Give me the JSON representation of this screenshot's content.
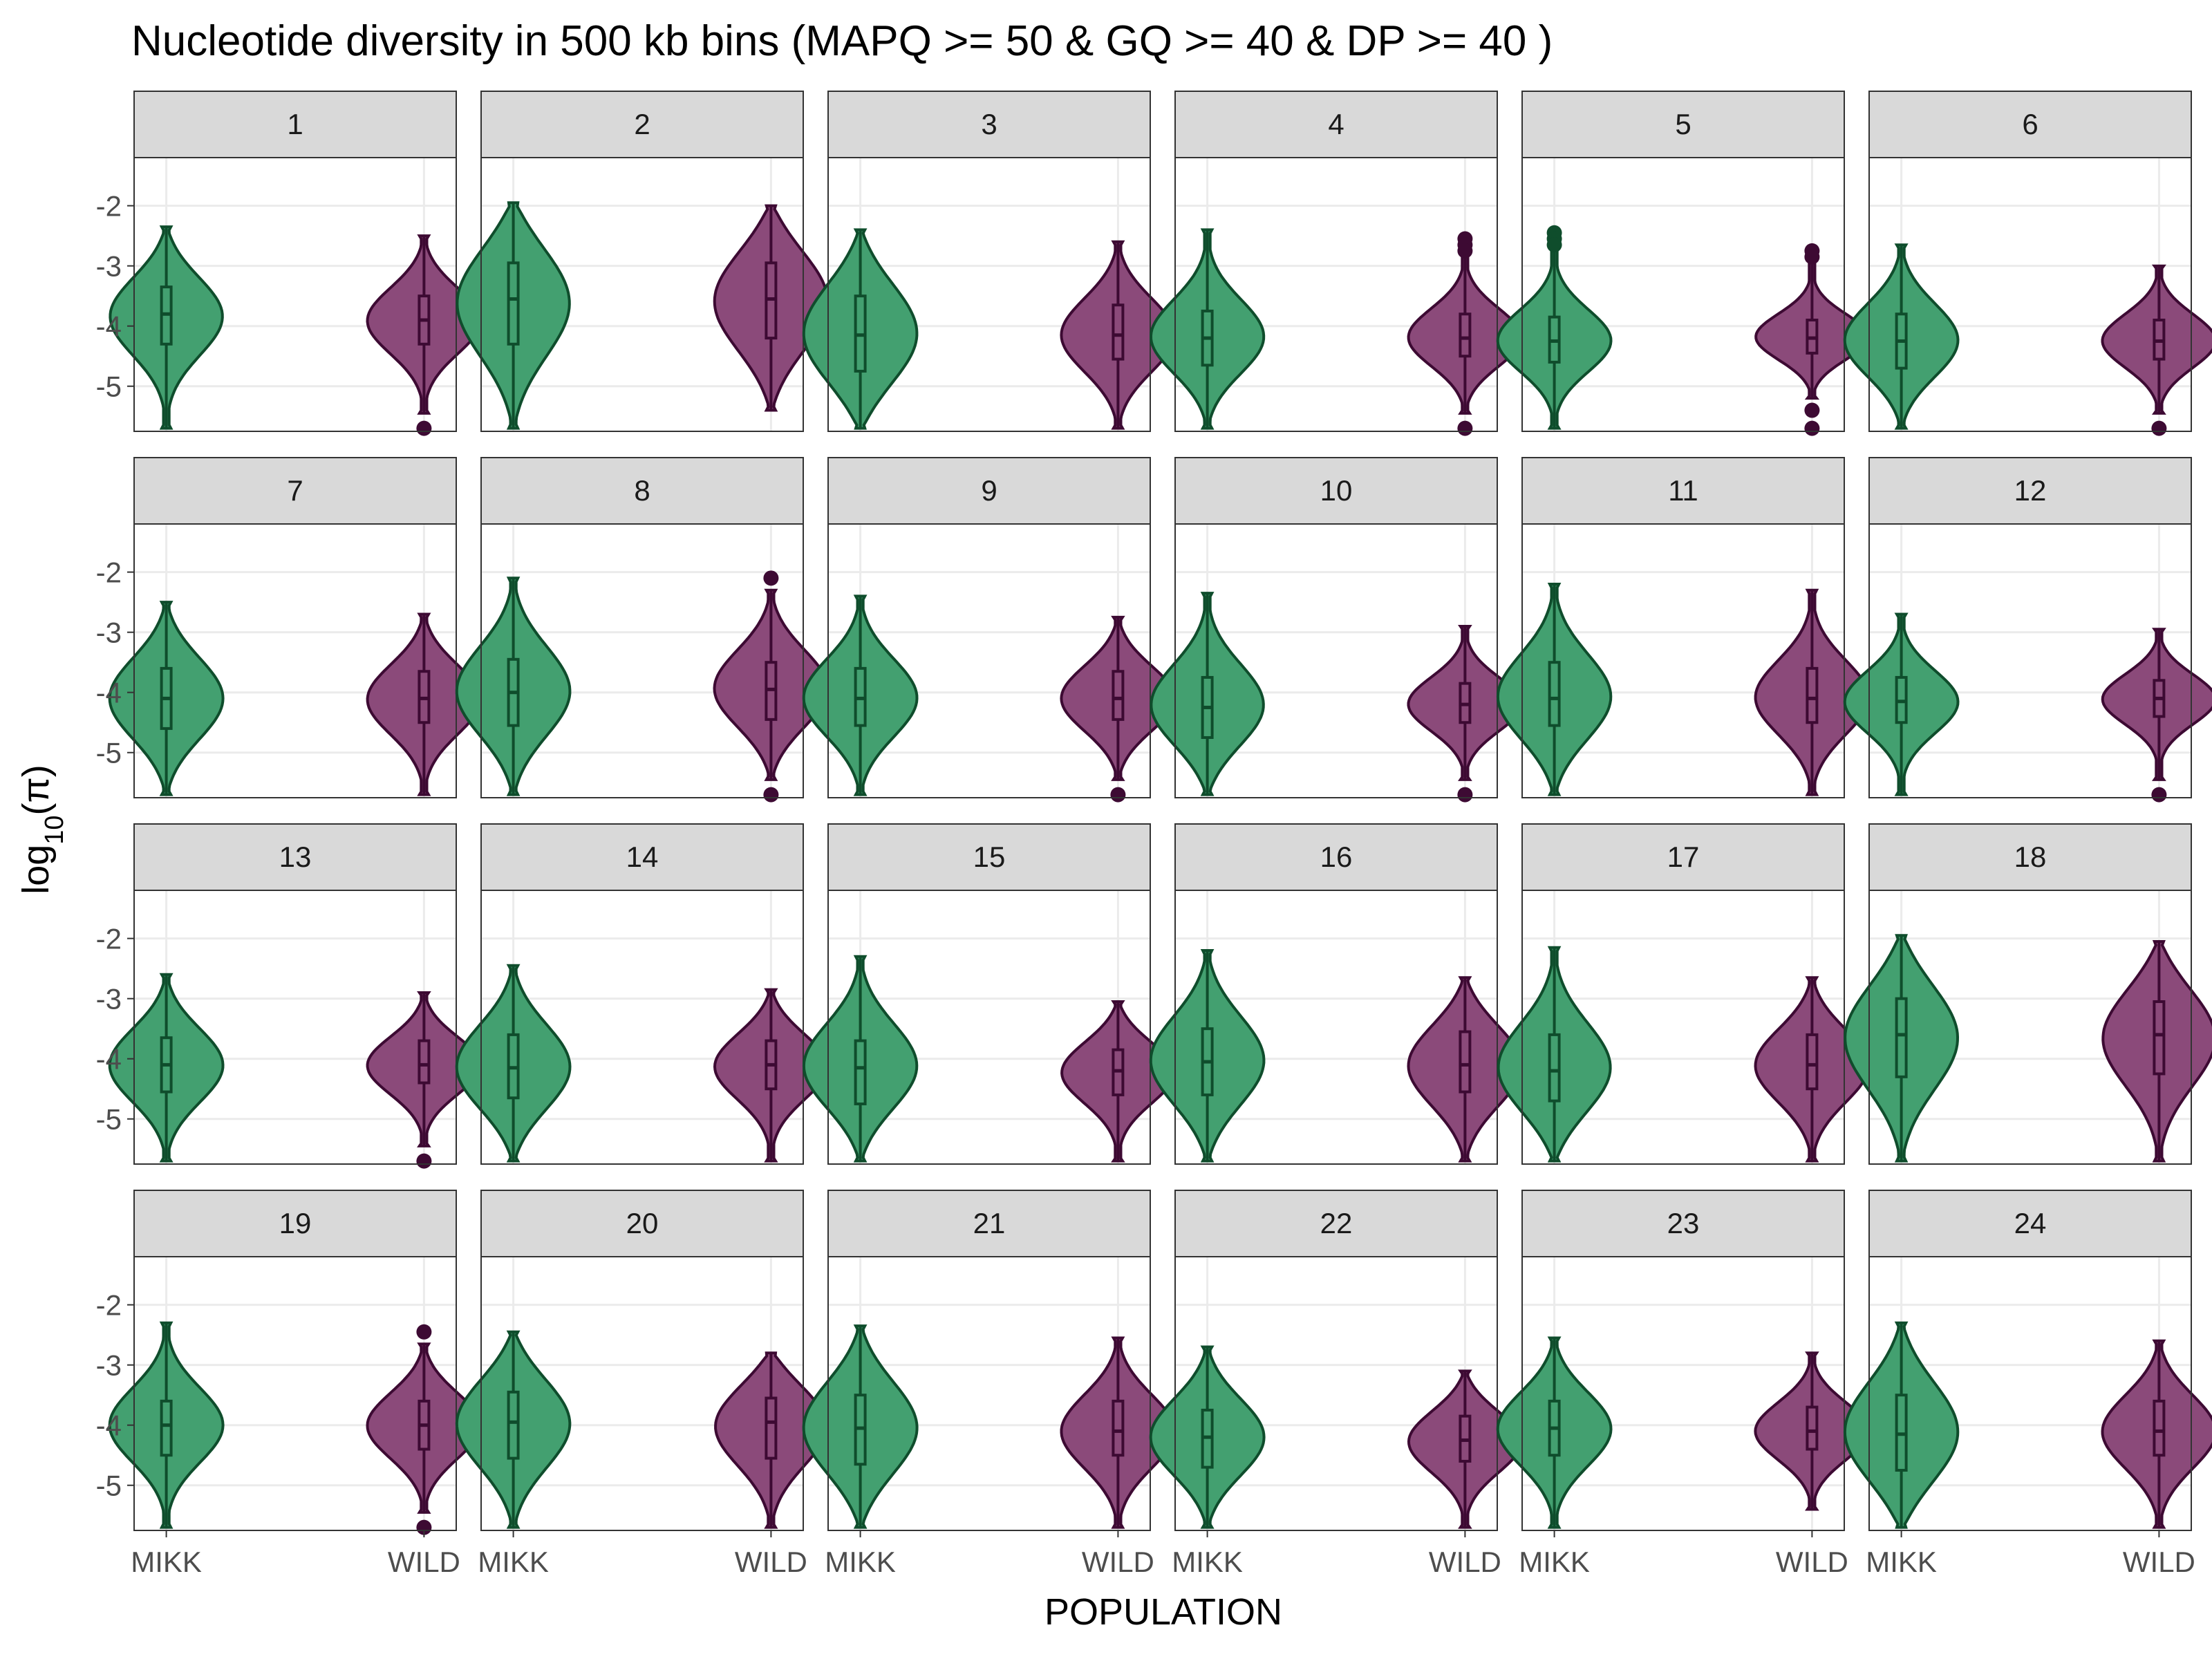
{
  "chart_data": {
    "type": "violin",
    "title": "Nucleotide diversity in 500 kb bins (MAPQ >= 50 & GQ >= 40 & DP >= 40 )",
    "xlabel": "POPULATION",
    "ylabel_main": "log",
    "ylabel_sub": "10",
    "ylabel_rest": "(π)",
    "categories": [
      "MIKK",
      "WILD"
    ],
    "yticks": [
      "-2",
      "-3",
      "-4",
      "-5"
    ],
    "ytick_values": [
      -2,
      -3,
      -4,
      -5
    ],
    "ylim": [
      -5.75,
      -1.2
    ],
    "grid": true,
    "facet_layout": {
      "rows": 4,
      "cols": 6
    },
    "colors": {
      "MIKK_fill": "#43a070",
      "MIKK_line": "#0f4d2c",
      "WILD_fill": "#8b4a7a",
      "WILD_line": "#3d0a33",
      "strip_bg": "#d9d9d9",
      "panel_border": "#333333",
      "grid": "#ebebeb"
    },
    "panels": [
      {
        "label": "1",
        "MIKK": {
          "min": -5.7,
          "q1": -4.3,
          "median": -3.8,
          "q3": -3.35,
          "max": -2.35,
          "outliers": []
        },
        "WILD": {
          "min": -5.45,
          "q1": -4.3,
          "median": -3.9,
          "q3": -3.5,
          "max": -2.5,
          "outliers": [
            -5.7
          ]
        }
      },
      {
        "label": "2",
        "MIKK": {
          "min": -5.7,
          "q1": -4.3,
          "median": -3.55,
          "q3": -2.95,
          "max": -1.95,
          "outliers": []
        },
        "WILD": {
          "min": -5.4,
          "q1": -4.2,
          "median": -3.55,
          "q3": -2.95,
          "max": -2.0,
          "outliers": []
        }
      },
      {
        "label": "3",
        "MIKK": {
          "min": -5.7,
          "q1": -4.75,
          "median": -4.15,
          "q3": -3.5,
          "max": -2.4,
          "outliers": []
        },
        "WILD": {
          "min": -5.7,
          "q1": -4.55,
          "median": -4.15,
          "q3": -3.65,
          "max": -2.6,
          "outliers": []
        }
      },
      {
        "label": "4",
        "MIKK": {
          "min": -5.7,
          "q1": -4.65,
          "median": -4.2,
          "q3": -3.75,
          "max": -2.4,
          "outliers": []
        },
        "WILD": {
          "min": -5.45,
          "q1": -4.5,
          "median": -4.2,
          "q3": -3.8,
          "max": -2.8,
          "outliers": [
            -2.55,
            -2.65,
            -2.75,
            -5.7
          ]
        }
      },
      {
        "label": "5",
        "MIKK": {
          "min": -5.7,
          "q1": -4.6,
          "median": -4.25,
          "q3": -3.85,
          "max": -2.7,
          "outliers": [
            -2.45,
            -2.55,
            -2.65
          ]
        },
        "WILD": {
          "min": -5.2,
          "q1": -4.45,
          "median": -4.2,
          "q3": -3.9,
          "max": -2.9,
          "outliers": [
            -2.75,
            -2.85,
            -5.4,
            -5.7
          ]
        }
      },
      {
        "label": "6",
        "MIKK": {
          "min": -5.7,
          "q1": -4.7,
          "median": -4.25,
          "q3": -3.8,
          "max": -2.65,
          "outliers": []
        },
        "WILD": {
          "min": -5.45,
          "q1": -4.55,
          "median": -4.25,
          "q3": -3.9,
          "max": -3.0,
          "outliers": [
            -5.7
          ]
        }
      },
      {
        "label": "7",
        "MIKK": {
          "min": -5.7,
          "q1": -4.6,
          "median": -4.1,
          "q3": -3.6,
          "max": -2.5,
          "outliers": []
        },
        "WILD": {
          "min": -5.7,
          "q1": -4.5,
          "median": -4.1,
          "q3": -3.65,
          "max": -2.7,
          "outliers": []
        }
      },
      {
        "label": "8",
        "MIKK": {
          "min": -5.7,
          "q1": -4.55,
          "median": -4.0,
          "q3": -3.45,
          "max": -2.1,
          "outliers": []
        },
        "WILD": {
          "min": -5.45,
          "q1": -4.45,
          "median": -3.95,
          "q3": -3.5,
          "max": -2.3,
          "outliers": [
            -2.1,
            -5.7
          ]
        }
      },
      {
        "label": "9",
        "MIKK": {
          "min": -5.7,
          "q1": -4.55,
          "median": -4.1,
          "q3": -3.6,
          "max": -2.4,
          "outliers": []
        },
        "WILD": {
          "min": -5.45,
          "q1": -4.45,
          "median": -4.1,
          "q3": -3.65,
          "max": -2.75,
          "outliers": [
            -5.7
          ]
        }
      },
      {
        "label": "10",
        "MIKK": {
          "min": -5.7,
          "q1": -4.75,
          "median": -4.25,
          "q3": -3.75,
          "max": -2.35,
          "outliers": []
        },
        "WILD": {
          "min": -5.45,
          "q1": -4.5,
          "median": -4.2,
          "q3": -3.85,
          "max": -2.9,
          "outliers": [
            -5.7
          ]
        }
      },
      {
        "label": "11",
        "MIKK": {
          "min": -5.7,
          "q1": -4.55,
          "median": -4.1,
          "q3": -3.5,
          "max": -2.2,
          "outliers": []
        },
        "WILD": {
          "min": -5.7,
          "q1": -4.5,
          "median": -4.1,
          "q3": -3.6,
          "max": -2.3,
          "outliers": []
        }
      },
      {
        "label": "12",
        "MIKK": {
          "min": -5.7,
          "q1": -4.5,
          "median": -4.15,
          "q3": -3.75,
          "max": -2.7,
          "outliers": []
        },
        "WILD": {
          "min": -5.45,
          "q1": -4.4,
          "median": -4.1,
          "q3": -3.8,
          "max": -2.95,
          "outliers": [
            -5.7
          ]
        }
      },
      {
        "label": "13",
        "MIKK": {
          "min": -5.7,
          "q1": -4.55,
          "median": -4.1,
          "q3": -3.65,
          "max": -2.6,
          "outliers": []
        },
        "WILD": {
          "min": -5.45,
          "q1": -4.4,
          "median": -4.1,
          "q3": -3.7,
          "max": -2.9,
          "outliers": [
            -5.7
          ]
        }
      },
      {
        "label": "14",
        "MIKK": {
          "min": -5.7,
          "q1": -4.65,
          "median": -4.15,
          "q3": -3.6,
          "max": -2.45,
          "outliers": []
        },
        "WILD": {
          "min": -5.7,
          "q1": -4.5,
          "median": -4.1,
          "q3": -3.7,
          "max": -2.85,
          "outliers": []
        }
      },
      {
        "label": "15",
        "MIKK": {
          "min": -5.7,
          "q1": -4.75,
          "median": -4.15,
          "q3": -3.7,
          "max": -2.3,
          "outliers": []
        },
        "WILD": {
          "min": -5.7,
          "q1": -4.6,
          "median": -4.2,
          "q3": -3.85,
          "max": -3.05,
          "outliers": []
        }
      },
      {
        "label": "16",
        "MIKK": {
          "min": -5.7,
          "q1": -4.6,
          "median": -4.05,
          "q3": -3.5,
          "max": -2.2,
          "outliers": []
        },
        "WILD": {
          "min": -5.7,
          "q1": -4.55,
          "median": -4.1,
          "q3": -3.55,
          "max": -2.65,
          "outliers": []
        }
      },
      {
        "label": "17",
        "MIKK": {
          "min": -5.7,
          "q1": -4.7,
          "median": -4.2,
          "q3": -3.6,
          "max": -2.15,
          "outliers": []
        },
        "WILD": {
          "min": -5.7,
          "q1": -4.5,
          "median": -4.1,
          "q3": -3.6,
          "max": -2.65,
          "outliers": []
        }
      },
      {
        "label": "18",
        "MIKK": {
          "min": -5.7,
          "q1": -4.3,
          "median": -3.6,
          "q3": -3.0,
          "max": -1.95,
          "outliers": []
        },
        "WILD": {
          "min": -5.7,
          "q1": -4.25,
          "median": -3.6,
          "q3": -3.05,
          "max": -2.05,
          "outliers": []
        }
      },
      {
        "label": "19",
        "MIKK": {
          "min": -5.7,
          "q1": -4.5,
          "median": -4.0,
          "q3": -3.6,
          "max": -2.3,
          "outliers": []
        },
        "WILD": {
          "min": -5.45,
          "q1": -4.4,
          "median": -4.0,
          "q3": -3.6,
          "max": -2.65,
          "outliers": [
            -2.45,
            -5.7
          ]
        }
      },
      {
        "label": "20",
        "MIKK": {
          "min": -5.7,
          "q1": -4.55,
          "median": -3.95,
          "q3": -3.45,
          "max": -2.45,
          "outliers": []
        },
        "WILD": {
          "min": -5.7,
          "q1": -4.55,
          "median": -3.95,
          "q3": -3.55,
          "max": -2.8,
          "outliers": []
        }
      },
      {
        "label": "21",
        "MIKK": {
          "min": -5.7,
          "q1": -4.65,
          "median": -4.05,
          "q3": -3.5,
          "max": -2.35,
          "outliers": []
        },
        "WILD": {
          "min": -5.7,
          "q1": -4.5,
          "median": -4.1,
          "q3": -3.6,
          "max": -2.55,
          "outliers": []
        }
      },
      {
        "label": "22",
        "MIKK": {
          "min": -5.7,
          "q1": -4.7,
          "median": -4.2,
          "q3": -3.75,
          "max": -2.7,
          "outliers": []
        },
        "WILD": {
          "min": -5.7,
          "q1": -4.6,
          "median": -4.25,
          "q3": -3.85,
          "max": -3.1,
          "outliers": []
        }
      },
      {
        "label": "23",
        "MIKK": {
          "min": -5.7,
          "q1": -4.5,
          "median": -4.05,
          "q3": -3.6,
          "max": -2.55,
          "outliers": []
        },
        "WILD": {
          "min": -5.4,
          "q1": -4.4,
          "median": -4.1,
          "q3": -3.7,
          "max": -2.8,
          "outliers": []
        }
      },
      {
        "label": "24",
        "MIKK": {
          "min": -5.7,
          "q1": -4.75,
          "median": -4.15,
          "q3": -3.5,
          "max": -2.3,
          "outliers": []
        },
        "WILD": {
          "min": -5.7,
          "q1": -4.5,
          "median": -4.1,
          "q3": -3.6,
          "max": -2.6,
          "outliers": []
        }
      }
    ]
  }
}
